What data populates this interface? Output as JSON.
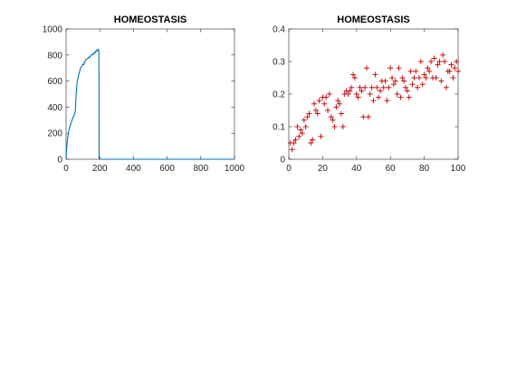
{
  "chart_data": [
    {
      "type": "line",
      "title": "HOMEOSTASIS",
      "xlabel": "",
      "ylabel": "",
      "xlim": [
        0,
        1000
      ],
      "ylim": [
        0,
        1000
      ],
      "xticks": [
        0,
        200,
        400,
        600,
        800,
        1000
      ],
      "yticks": [
        0,
        200,
        400,
        600,
        800,
        1000
      ],
      "grid": false,
      "series": [
        {
          "color": "#0072bd",
          "x": [
            0,
            5,
            10,
            15,
            20,
            25,
            30,
            35,
            40,
            45,
            50,
            55,
            60,
            65,
            70,
            75,
            80,
            85,
            90,
            95,
            100,
            105,
            110,
            115,
            120,
            125,
            130,
            135,
            140,
            145,
            150,
            155,
            160,
            165,
            170,
            175,
            180,
            185,
            190,
            195,
            196,
            200,
            250,
            300,
            400,
            500,
            600,
            700,
            800,
            900,
            1000
          ],
          "y": [
            0,
            110,
            170,
            210,
            240,
            262,
            280,
            300,
            315,
            330,
            345,
            370,
            500,
            590,
            620,
            650,
            670,
            700,
            705,
            720,
            730,
            725,
            745,
            760,
            770,
            770,
            775,
            785,
            780,
            795,
            800,
            800,
            810,
            805,
            825,
            820,
            835,
            830,
            845,
            835,
            0,
            0,
            0,
            0,
            0,
            0,
            0,
            0,
            0,
            0,
            0
          ]
        }
      ]
    },
    {
      "type": "scatter",
      "title": "HOMEOSTASIS",
      "xlabel": "",
      "ylabel": "",
      "xlim": [
        0,
        100
      ],
      "ylim": [
        0,
        0.4
      ],
      "xticks": [
        0,
        20,
        40,
        60,
        80,
        100
      ],
      "yticks": [
        0,
        0.1,
        0.2,
        0.3,
        0.4
      ],
      "grid": false,
      "marker": "+",
      "series": [
        {
          "color": "#c00000",
          "points": [
            [
              1,
              0.05
            ],
            [
              2,
              0.03
            ],
            [
              3,
              0.05
            ],
            [
              4,
              0.06
            ],
            [
              5,
              0.1
            ],
            [
              6,
              0.07
            ],
            [
              7,
              0.09
            ],
            [
              8,
              0.08
            ],
            [
              9,
              0.12
            ],
            [
              10,
              0.1
            ],
            [
              11,
              0.13
            ],
            [
              12,
              0.14
            ],
            [
              13,
              0.05
            ],
            [
              14,
              0.06
            ],
            [
              15,
              0.17
            ],
            [
              16,
              0.15
            ],
            [
              17,
              0.14
            ],
            [
              18,
              0.18
            ],
            [
              19,
              0.07
            ],
            [
              20,
              0.19
            ],
            [
              21,
              0.17
            ],
            [
              22,
              0.19
            ],
            [
              23,
              0.15
            ],
            [
              24,
              0.2
            ],
            [
              25,
              0.13
            ],
            [
              26,
              0.12
            ],
            [
              27,
              0.1
            ],
            [
              28,
              0.16
            ],
            [
              29,
              0.18
            ],
            [
              30,
              0.17
            ],
            [
              31,
              0.14
            ],
            [
              32,
              0.1
            ],
            [
              33,
              0.2
            ],
            [
              34,
              0.21
            ],
            [
              35,
              0.2
            ],
            [
              36,
              0.21
            ],
            [
              37,
              0.22
            ],
            [
              38,
              0.26
            ],
            [
              39,
              0.25
            ],
            [
              40,
              0.2
            ],
            [
              41,
              0.19
            ],
            [
              42,
              0.22
            ],
            [
              43,
              0.21
            ],
            [
              44,
              0.13
            ],
            [
              45,
              0.22
            ],
            [
              46,
              0.28
            ],
            [
              47,
              0.13
            ],
            [
              48,
              0.2
            ],
            [
              49,
              0.22
            ],
            [
              50,
              0.18
            ],
            [
              51,
              0.26
            ],
            [
              52,
              0.22
            ],
            [
              53,
              0.19
            ],
            [
              54,
              0.21
            ],
            [
              55,
              0.24
            ],
            [
              56,
              0.22
            ],
            [
              57,
              0.24
            ],
            [
              58,
              0.18
            ],
            [
              59,
              0.22
            ],
            [
              60,
              0.28
            ],
            [
              61,
              0.25
            ],
            [
              62,
              0.23
            ],
            [
              63,
              0.24
            ],
            [
              64,
              0.2
            ],
            [
              65,
              0.28
            ],
            [
              66,
              0.19
            ],
            [
              67,
              0.25
            ],
            [
              68,
              0.24
            ],
            [
              69,
              0.22
            ],
            [
              70,
              0.21
            ],
            [
              71,
              0.19
            ],
            [
              72,
              0.27
            ],
            [
              73,
              0.23
            ],
            [
              74,
              0.25
            ],
            [
              75,
              0.27
            ],
            [
              76,
              0.22
            ],
            [
              77,
              0.25
            ],
            [
              78,
              0.3
            ],
            [
              79,
              0.23
            ],
            [
              80,
              0.26
            ],
            [
              81,
              0.25
            ],
            [
              82,
              0.28
            ],
            [
              83,
              0.27
            ],
            [
              84,
              0.3
            ],
            [
              85,
              0.25
            ],
            [
              86,
              0.31
            ],
            [
              87,
              0.25
            ],
            [
              88,
              0.29
            ],
            [
              89,
              0.3
            ],
            [
              90,
              0.24
            ],
            [
              91,
              0.32
            ],
            [
              92,
              0.3
            ],
            [
              93,
              0.22
            ],
            [
              94,
              0.27
            ],
            [
              95,
              0.27
            ],
            [
              96,
              0.29
            ],
            [
              97,
              0.25
            ],
            [
              98,
              0.28
            ],
            [
              99,
              0.3
            ],
            [
              100,
              0.27
            ]
          ]
        }
      ]
    }
  ]
}
